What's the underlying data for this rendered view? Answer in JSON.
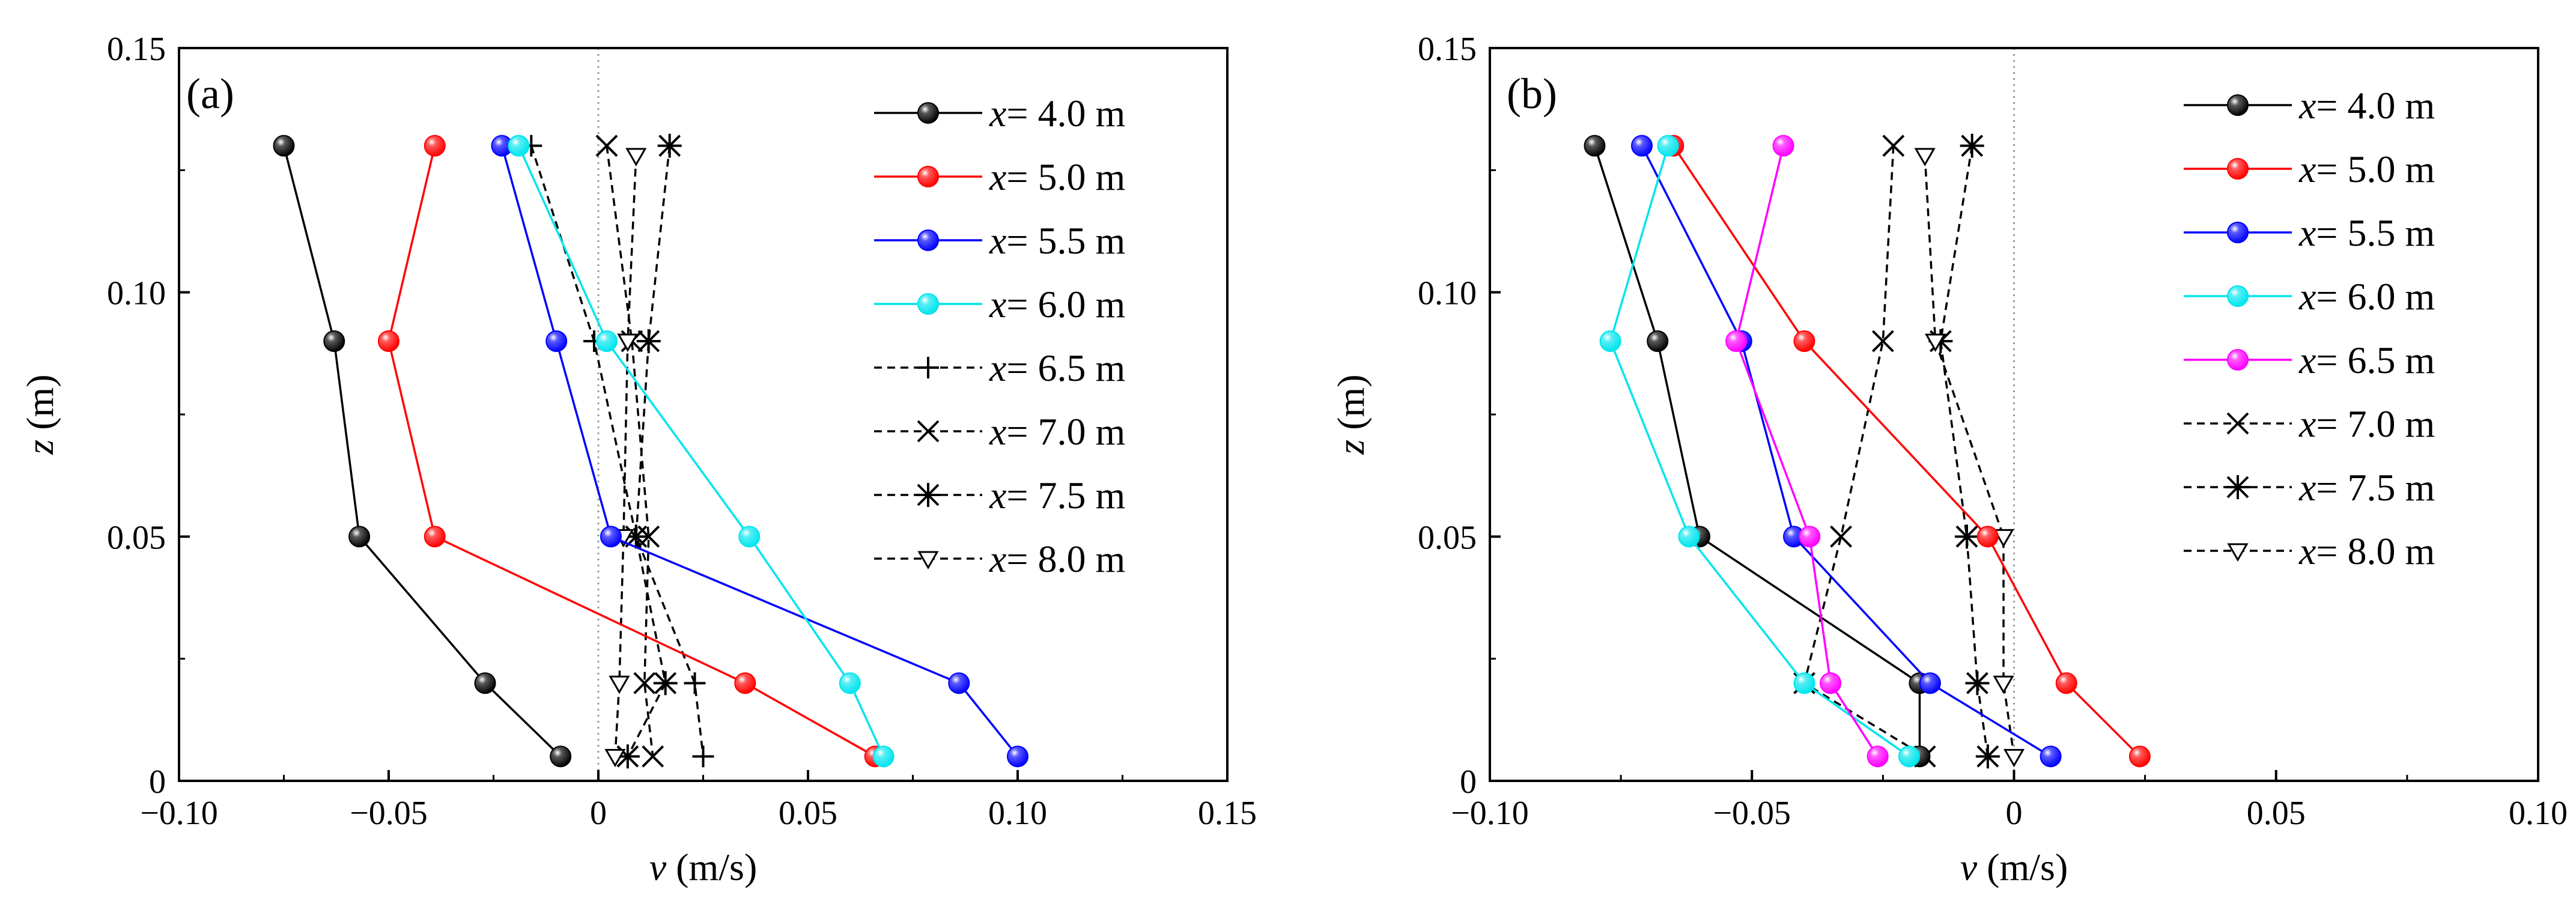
{
  "chart_data": [
    {
      "type": "line",
      "panel_label": "(a)",
      "xlabel_var": "v",
      "xlabel_unit": "(m/s)",
      "ylabel_var": "z",
      "ylabel_unit": "(m)",
      "xlim": [
        -0.1,
        0.15
      ],
      "ylim": [
        0,
        0.15
      ],
      "xticks": [
        -0.1,
        -0.05,
        0,
        0.05,
        0.1,
        0.15
      ],
      "xtick_labels": [
        "−0.10",
        "−0.05",
        "0",
        "0.05",
        "0.10",
        "0.15"
      ],
      "yticks": [
        0,
        0.05,
        0.1,
        0.15
      ],
      "ytick_labels": [
        "0",
        "0.05",
        "0.10",
        "0.15"
      ],
      "legend_position": "right",
      "series": [
        {
          "name_var": "x",
          "name_rest": "= 4.0 m",
          "color": "#000000",
          "marker": "ball",
          "dash": false,
          "x": [
            -0.075,
            -0.063,
            -0.057,
            -0.027,
            -0.009
          ],
          "y": [
            0.13,
            0.09,
            0.05,
            0.02,
            0.005
          ]
        },
        {
          "name_var": "x",
          "name_rest": "= 5.0 m",
          "color": "#ff0000",
          "marker": "ball",
          "dash": false,
          "x": [
            -0.039,
            -0.05,
            -0.039,
            0.035,
            0.066
          ],
          "y": [
            0.13,
            0.09,
            0.05,
            0.02,
            0.005
          ]
        },
        {
          "name_var": "x",
          "name_rest": "= 5.5 m",
          "color": "#0000ff",
          "marker": "ball",
          "dash": false,
          "x": [
            -0.023,
            -0.01,
            0.003,
            0.086,
            0.1
          ],
          "y": [
            0.13,
            0.09,
            0.05,
            0.02,
            0.005
          ]
        },
        {
          "name_var": "x",
          "name_rest": "= 6.0 m",
          "color": "#00e5ee",
          "marker": "ball",
          "dash": false,
          "x": [
            -0.019,
            0.002,
            0.036,
            0.06,
            0.068
          ],
          "y": [
            0.13,
            0.09,
            0.05,
            0.02,
            0.005
          ]
        },
        {
          "name_var": "x",
          "name_rest": "= 6.5 m",
          "color": "#000000",
          "marker": "plus",
          "dash": true,
          "x": [
            -0.016,
            -0.001,
            0.009,
            0.023,
            0.025
          ],
          "y": [
            0.13,
            0.09,
            0.05,
            0.02,
            0.005
          ]
        },
        {
          "name_var": "x",
          "name_rest": "= 7.0 m",
          "color": "#000000",
          "marker": "cross",
          "dash": true,
          "x": [
            0.002,
            0.008,
            0.012,
            0.011,
            0.013
          ],
          "y": [
            0.13,
            0.09,
            0.05,
            0.02,
            0.005
          ]
        },
        {
          "name_var": "x",
          "name_rest": "= 7.5 m",
          "color": "#000000",
          "marker": "star",
          "dash": true,
          "x": [
            0.017,
            0.012,
            0.009,
            0.016,
            0.007
          ],
          "y": [
            0.13,
            0.09,
            0.05,
            0.02,
            0.005
          ]
        },
        {
          "name_var": "x",
          "name_rest": "= 8.0 m",
          "color": "#000000",
          "marker": "tri",
          "dash": true,
          "x": [
            0.009,
            0.007,
            0.006,
            0.005,
            0.004
          ],
          "y": [
            0.128,
            0.09,
            0.05,
            0.02,
            0.005
          ]
        }
      ]
    },
    {
      "type": "line",
      "panel_label": "(b)",
      "xlabel_var": "v",
      "xlabel_unit": "(m/s)",
      "ylabel_var": "z",
      "ylabel_unit": "(m)",
      "xlim": [
        -0.1,
        0.1
      ],
      "ylim": [
        0,
        0.15
      ],
      "xticks": [
        -0.1,
        -0.05,
        0,
        0.05,
        0.1
      ],
      "xtick_labels": [
        "−0.10",
        "−0.05",
        "0",
        "0.05",
        "0.10"
      ],
      "yticks": [
        0,
        0.05,
        0.1,
        0.15
      ],
      "ytick_labels": [
        "0",
        "0.05",
        "0.10",
        "0.15"
      ],
      "legend_position": "right",
      "series": [
        {
          "name_var": "x",
          "name_rest": "= 4.0 m",
          "color": "#000000",
          "marker": "ball",
          "dash": false,
          "x": [
            -0.08,
            -0.068,
            -0.06,
            -0.018,
            -0.018
          ],
          "y": [
            0.13,
            0.09,
            0.05,
            0.02,
            0.005
          ]
        },
        {
          "name_var": "x",
          "name_rest": "= 5.0 m",
          "color": "#ff0000",
          "marker": "ball",
          "dash": false,
          "x": [
            -0.065,
            -0.04,
            -0.005,
            0.01,
            0.024
          ],
          "y": [
            0.13,
            0.09,
            0.05,
            0.02,
            0.005
          ]
        },
        {
          "name_var": "x",
          "name_rest": "= 5.5 m",
          "color": "#0000ff",
          "marker": "ball",
          "dash": false,
          "x": [
            -0.071,
            -0.052,
            -0.042,
            -0.016,
            0.007
          ],
          "y": [
            0.13,
            0.09,
            0.05,
            0.02,
            0.005
          ]
        },
        {
          "name_var": "x",
          "name_rest": "= 6.0 m",
          "color": "#00e5ee",
          "marker": "ball",
          "dash": false,
          "x": [
            -0.066,
            -0.077,
            -0.062,
            -0.04,
            -0.02
          ],
          "y": [
            0.13,
            0.09,
            0.05,
            0.02,
            0.005
          ]
        },
        {
          "name_var": "x",
          "name_rest": "= 6.5 m",
          "color": "#ff00ff",
          "marker": "ball",
          "dash": false,
          "x": [
            -0.044,
            -0.053,
            -0.039,
            -0.035,
            -0.026
          ],
          "y": [
            0.13,
            0.09,
            0.05,
            0.02,
            0.005
          ]
        },
        {
          "name_var": "x",
          "name_rest": "= 7.0 m",
          "color": "#000000",
          "marker": "cross",
          "dash": true,
          "x": [
            -0.023,
            -0.025,
            -0.033,
            -0.04,
            -0.017
          ],
          "y": [
            0.13,
            0.09,
            0.05,
            0.02,
            0.005
          ]
        },
        {
          "name_var": "x",
          "name_rest": "= 7.5 m",
          "color": "#000000",
          "marker": "star",
          "dash": true,
          "x": [
            -0.008,
            -0.014,
            -0.009,
            -0.007,
            -0.005
          ],
          "y": [
            0.13,
            0.09,
            0.05,
            0.02,
            0.005
          ]
        },
        {
          "name_var": "x",
          "name_rest": "= 8.0 m",
          "color": "#000000",
          "marker": "tri",
          "dash": true,
          "x": [
            -0.017,
            -0.015,
            -0.002,
            -0.002,
            0.0
          ],
          "y": [
            0.128,
            0.09,
            0.05,
            0.02,
            0.005
          ]
        }
      ]
    }
  ]
}
